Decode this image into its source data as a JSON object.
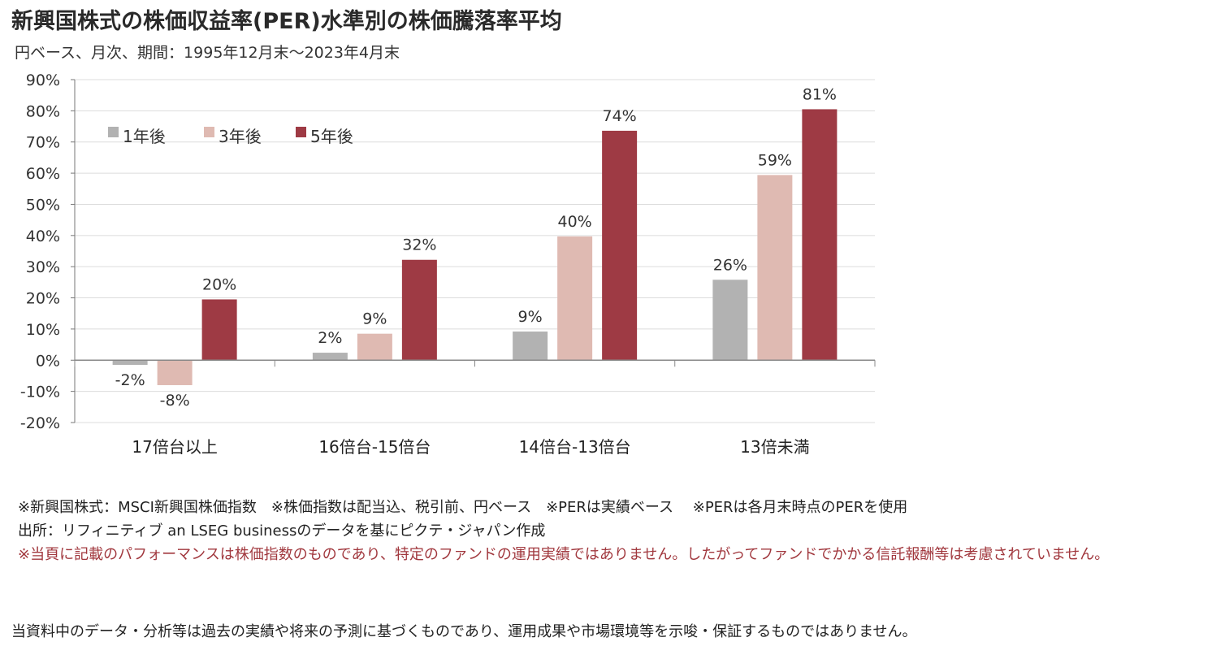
{
  "header": {
    "title": "新興国株式の株価収益率(PER)水準別の株価騰落率平均",
    "subtitle": "円ベース、月次、期間：1995年12月末〜2023年4月末"
  },
  "chart_data": {
    "type": "bar",
    "categories": [
      "17倍台以上",
      "16倍台-15倍台",
      "14倍台-13倍台",
      "13倍未満"
    ],
    "series": [
      {
        "name": "1年後",
        "values": [
          -1.5,
          2.4,
          9.2,
          25.8
        ],
        "labels": [
          "-2%",
          "2%",
          "9%",
          "26%"
        ],
        "color": "#b2b2b2"
      },
      {
        "name": "3年後",
        "values": [
          -8.0,
          8.5,
          39.7,
          59.4
        ],
        "labels": [
          "-8%",
          "9%",
          "40%",
          "59%"
        ],
        "color": "#dfbab2"
      },
      {
        "name": "5年後",
        "values": [
          19.5,
          32.2,
          73.6,
          80.5
        ],
        "labels": [
          "20%",
          "32%",
          "74%",
          "81%"
        ],
        "color": "#9e3a44"
      }
    ],
    "ylim": [
      -20,
      90
    ],
    "yticks": [
      90,
      80,
      70,
      60,
      50,
      40,
      30,
      20,
      10,
      0,
      -10,
      -20
    ],
    "ytick_labels": [
      "90%",
      "80%",
      "70%",
      "60%",
      "50%",
      "40%",
      "30%",
      "20%",
      "10%",
      "0%",
      "-10%",
      "-20%"
    ],
    "grid": true,
    "legend_position": "top-left"
  },
  "notes": {
    "line1": "※新興国株式：MSCI新興国株価指数　※株価指数は配当込、税引前、円ベース　※PERは実績ベース　 ※PERは各月末時点のPERを使用",
    "line2": "出所：リフィニティブ an LSEG businessのデータを基にピクテ・ジャパン作成",
    "red": "※当頁に記載のパフォーマンスは株価指数のものであり、特定のファンドの運用実績ではありません。したがってファンドでかかる信託報酬等は考慮されていません。"
  },
  "footer": {
    "disclaimer": "当資料中のデータ・分析等は過去の実績や将来の予測に基づくものであり、運用成果や市場環境等を示唆・保証するものではありません。"
  }
}
